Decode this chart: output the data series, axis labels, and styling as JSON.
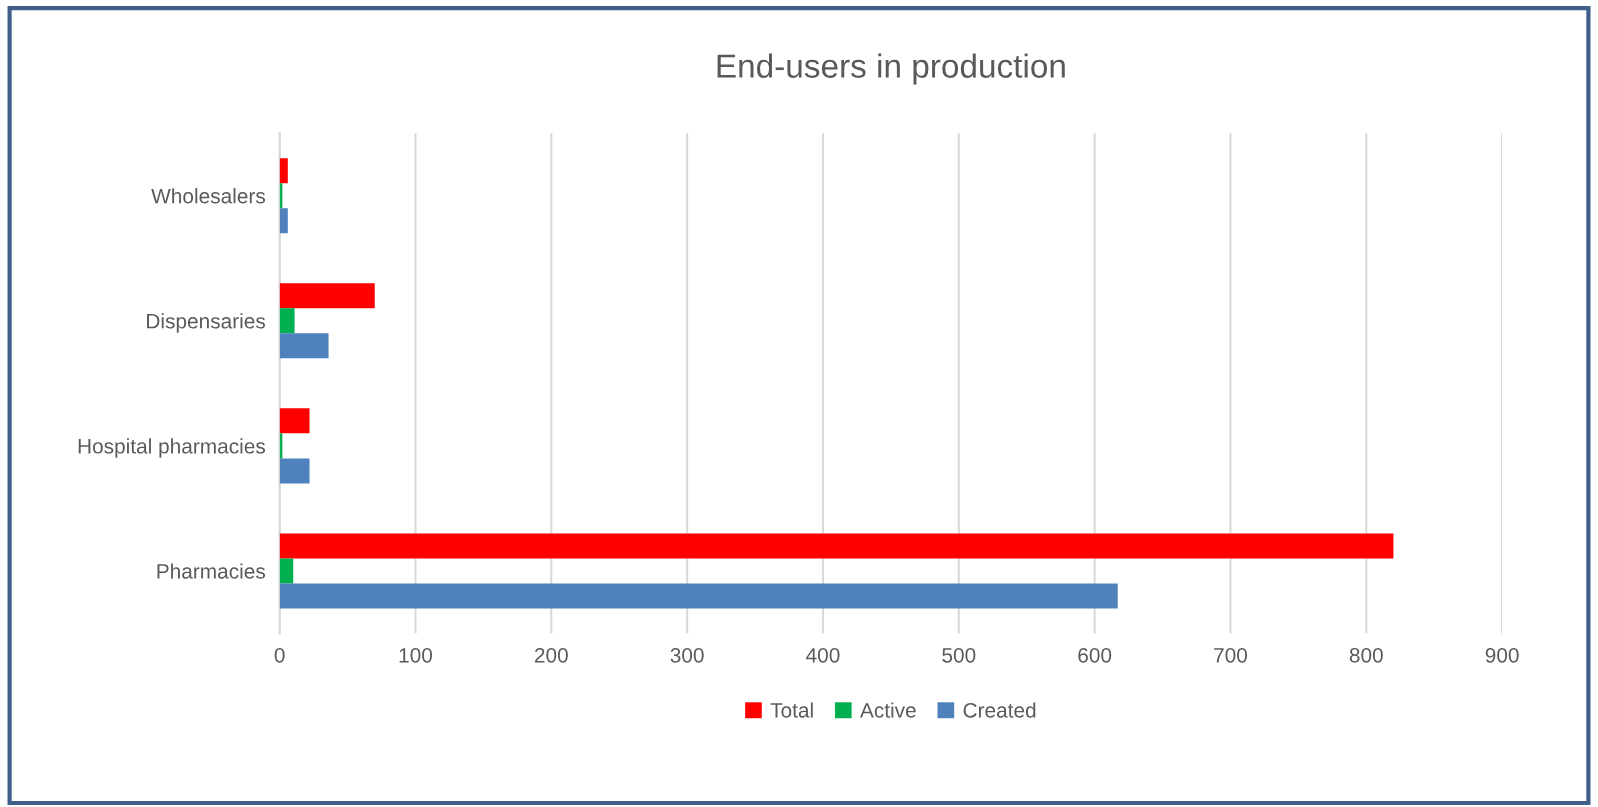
{
  "chart_data": {
    "type": "bar",
    "orientation": "horizontal",
    "title": "End-users in production",
    "categories": [
      "Wholesalers",
      "Dispensaries",
      "Hospital pharmacies",
      "Pharmacies"
    ],
    "series": [
      {
        "name": "Total",
        "color": "#ff0000",
        "values": [
          6,
          70,
          22,
          820
        ]
      },
      {
        "name": "Active",
        "color": "#00b050",
        "values": [
          2,
          11,
          2,
          10
        ]
      },
      {
        "name": "Created",
        "color": "#4f81bd",
        "values": [
          6,
          36,
          22,
          617
        ]
      }
    ],
    "xlim": [
      0,
      900
    ],
    "xticks": [
      0,
      100,
      200,
      300,
      400,
      500,
      600,
      700,
      800,
      900
    ],
    "grid": "x",
    "legend": "bottom"
  }
}
